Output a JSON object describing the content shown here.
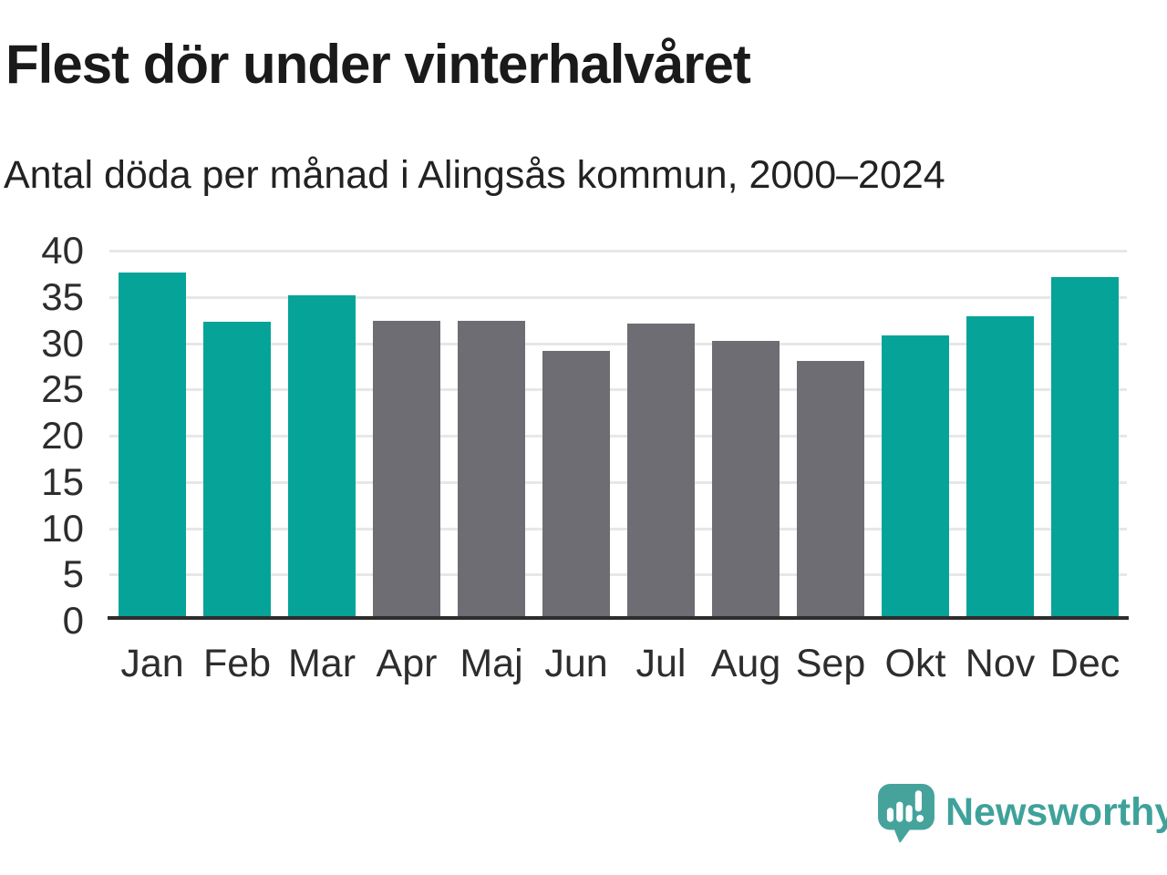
{
  "header": {
    "title": "Flest dör under vinterhalvåret",
    "subtitle": "Antal döda per månad i Alingsås kommun, 2000–2024"
  },
  "chart_data": {
    "type": "bar",
    "categories": [
      "Jan",
      "Feb",
      "Mar",
      "Apr",
      "Maj",
      "Jun",
      "Jul",
      "Aug",
      "Sep",
      "Okt",
      "Nov",
      "Dec"
    ],
    "values": [
      37.5,
      32.2,
      35.1,
      32.3,
      32.3,
      29.1,
      32.0,
      30.1,
      28.0,
      30.7,
      32.8,
      37.0
    ],
    "highlighted": [
      true,
      true,
      true,
      false,
      false,
      false,
      false,
      false,
      false,
      true,
      true,
      true
    ],
    "title": "Flest dör under vinterhalvåret",
    "subtitle": "Antal döda per månad i Alingsås kommun, 2000–2024",
    "xlabel": "",
    "ylabel": "",
    "ylim": [
      0,
      40
    ],
    "yticks": [
      0,
      5,
      10,
      15,
      20,
      25,
      30,
      35,
      40
    ],
    "grid": true,
    "legend_position": "none",
    "colors": {
      "highlight": "#06a399",
      "muted": "#6e6d73",
      "gridline": "#e7e7e7",
      "axis_line": "#2d2d2d",
      "tick_text": "#2d2d2d"
    }
  },
  "footer": {
    "brand": "Newsworthy",
    "brand_color": "#3fa29a",
    "logo_icon": "speech-bubble-bar-chart-icon",
    "logo_bubble_color": "#45a39c",
    "logo_glyph_color": "#ffffff"
  }
}
